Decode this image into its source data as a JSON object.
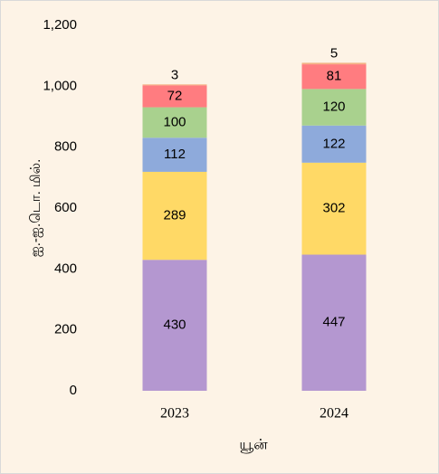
{
  "chart_data": {
    "type": "stacked_bar",
    "y_label": "ஐ.-ஐ.டொ. மில்.",
    "x_label": "யூன்",
    "categories": [
      "2023",
      "2024"
    ],
    "series": [
      {
        "color": "#b497d0",
        "values": [
          430,
          447
        ]
      },
      {
        "color": "#ffd966",
        "values": [
          289,
          302
        ]
      },
      {
        "color": "#8eaadb",
        "values": [
          112,
          122
        ]
      },
      {
        "color": "#a9d18e",
        "values": [
          100,
          120
        ]
      },
      {
        "color": "#ff7c80",
        "values": [
          72,
          81
        ]
      },
      {
        "color": "#f4b183",
        "values": [
          3,
          5
        ]
      }
    ],
    "ylim": [
      0,
      1200
    ],
    "yticks": [
      0,
      200,
      400,
      600,
      800,
      {
        "value": 1000,
        "label": "1,000"
      },
      {
        "value": 1200,
        "label": "1,200"
      }
    ],
    "grid": false
  }
}
